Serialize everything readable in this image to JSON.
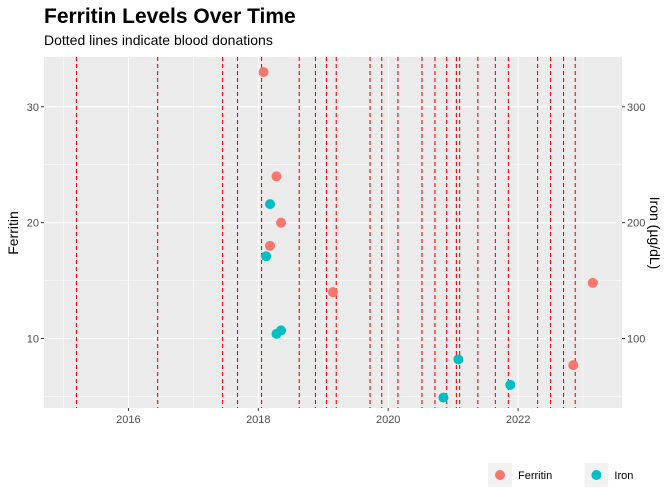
{
  "chart_data": {
    "type": "scatter",
    "title": "Ferritin Levels Over Time",
    "subtitle": "Dotted lines indicate blood donations",
    "ylabel": "Ferritin",
    "y2label": "Iron (µg/dL)",
    "xlim": [
      2014.7,
      2023.6
    ],
    "ylim": [
      4.0,
      34.3
    ],
    "y2lim": [
      40,
      343
    ],
    "x_ticks": [
      2016,
      2018,
      2020,
      2022
    ],
    "x_tick_labels": [
      "2016",
      "2018",
      "2020",
      "2022"
    ],
    "y_ticks": [
      10,
      20,
      30
    ],
    "y_tick_labels": [
      "10",
      "20",
      "30"
    ],
    "y2_ticks": [
      100,
      200,
      300
    ],
    "y2_tick_labels": [
      "100",
      "200",
      "300"
    ],
    "grid": true,
    "legend_position": "bottom-right",
    "donation_dates": [
      2015.2,
      2016.45,
      2017.45,
      2017.68,
      2018.05,
      2018.63,
      2018.88,
      2019.05,
      2019.2,
      2019.72,
      2019.9,
      2020.15,
      2020.52,
      2020.72,
      2020.9,
      2021.05,
      2021.1,
      2021.38,
      2021.65,
      2021.85,
      2022.3,
      2022.5,
      2022.7,
      2022.88
    ],
    "series": [
      {
        "name": "Ferritin",
        "color": "#F8766D",
        "points": [
          {
            "x": 2018.08,
            "y": 33
          },
          {
            "x": 2018.28,
            "y": 24
          },
          {
            "x": 2018.35,
            "y": 20
          },
          {
            "x": 2018.18,
            "y": 18
          },
          {
            "x": 2019.15,
            "y": 14
          },
          {
            "x": 2022.85,
            "y": 7.7
          },
          {
            "x": 2023.15,
            "y": 14.8
          }
        ]
      },
      {
        "name": "Iron",
        "color": "#00BFC4",
        "points": [
          {
            "x": 2018.18,
            "y": 21.6
          },
          {
            "x": 2018.12,
            "y": 17.1
          },
          {
            "x": 2018.35,
            "y": 10.7
          },
          {
            "x": 2018.28,
            "y": 10.4
          },
          {
            "x": 2020.85,
            "y": 4.9
          },
          {
            "x": 2021.08,
            "y": 8.2
          },
          {
            "x": 2021.88,
            "y": 6.0
          }
        ]
      }
    ]
  },
  "colors": {
    "panel": "#EBEBEB",
    "grid": "#FFFFFF",
    "donation_line": "#FF0000"
  }
}
